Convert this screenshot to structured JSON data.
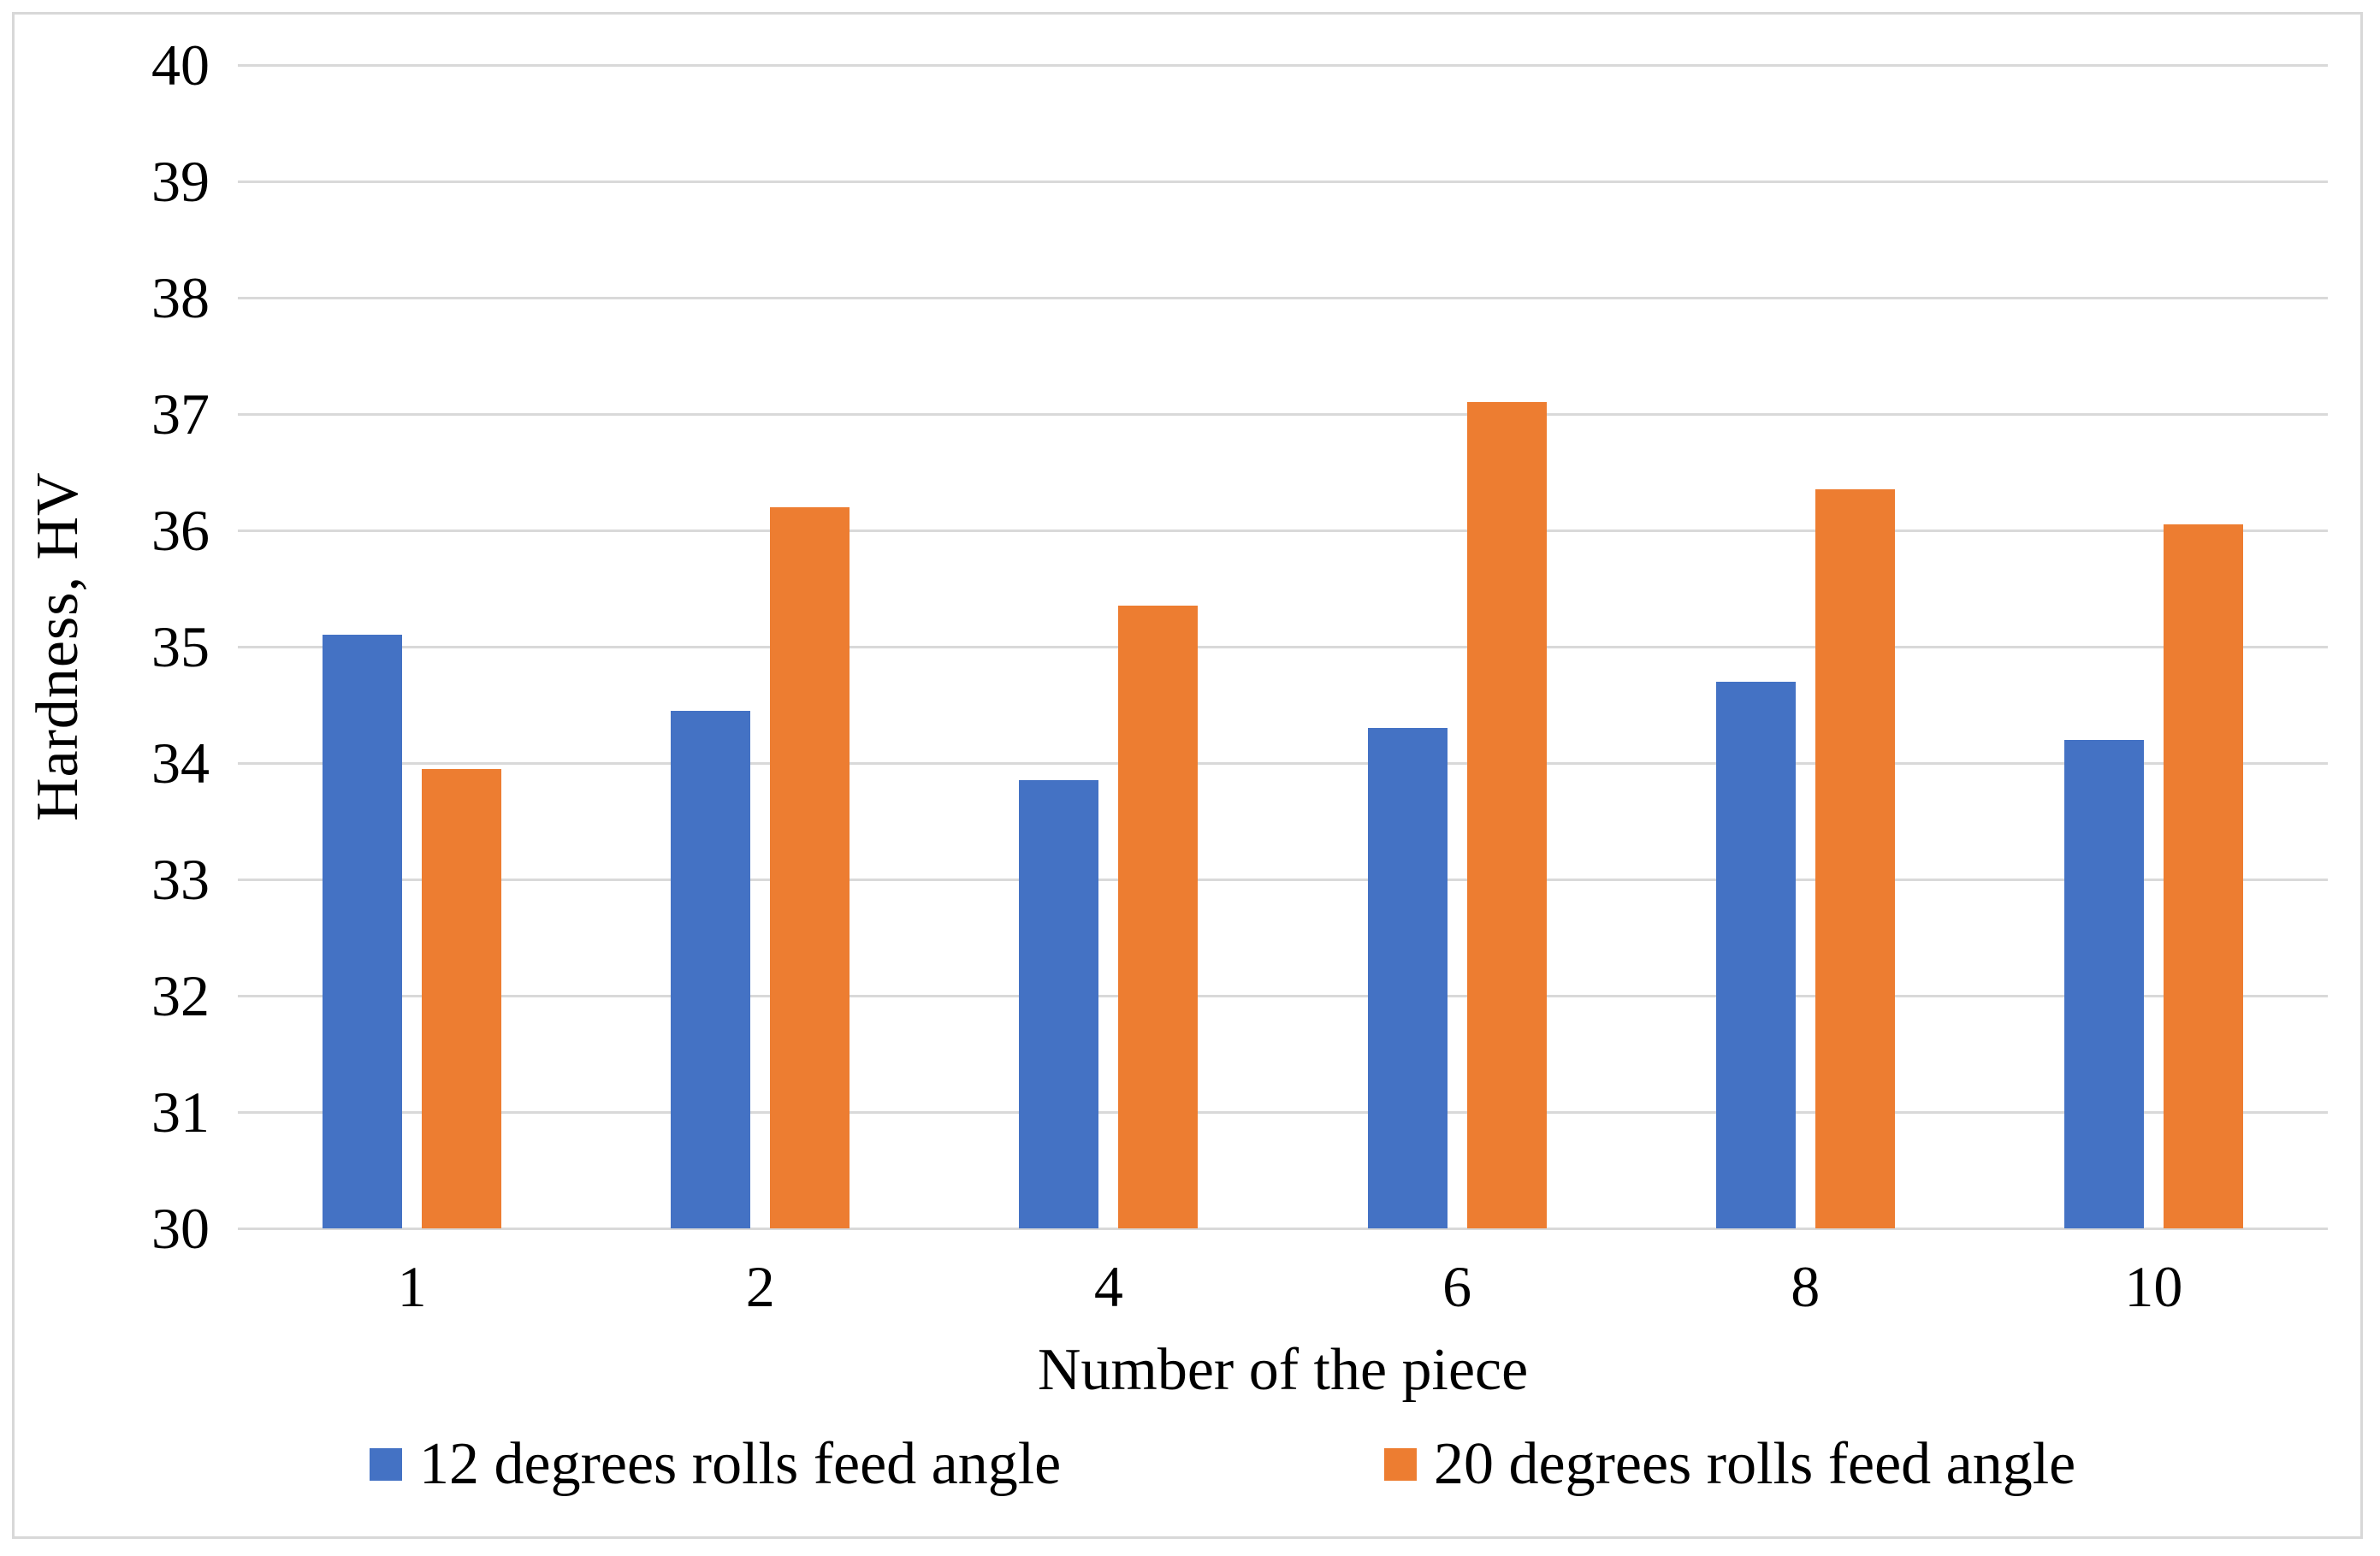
{
  "chart_data": {
    "type": "bar",
    "title": "",
    "xlabel": "Number of the piece",
    "ylabel": "Hardness, HV",
    "categories": [
      "1",
      "2",
      "4",
      "6",
      "8",
      "10"
    ],
    "series": [
      {
        "name": "12 degrees rolls feed angle",
        "color": "#4472C4",
        "values": [
          35.1,
          34.45,
          33.85,
          34.3,
          34.7,
          34.2
        ]
      },
      {
        "name": "20 degrees rolls feed angle",
        "color": "#ED7D31",
        "values": [
          33.95,
          36.2,
          35.35,
          37.1,
          36.35,
          36.05
        ]
      }
    ],
    "ylim": [
      30,
      40
    ],
    "yticks": [
      40,
      39,
      38,
      37,
      36,
      35,
      34,
      33,
      32,
      31,
      30
    ],
    "ytick_step": 1,
    "grid": "horizontal",
    "gridline_color": "#D9D9D9",
    "frame_color": "#D8D8D8",
    "background": "#FFFFFF",
    "legend_position": "bottom"
  }
}
